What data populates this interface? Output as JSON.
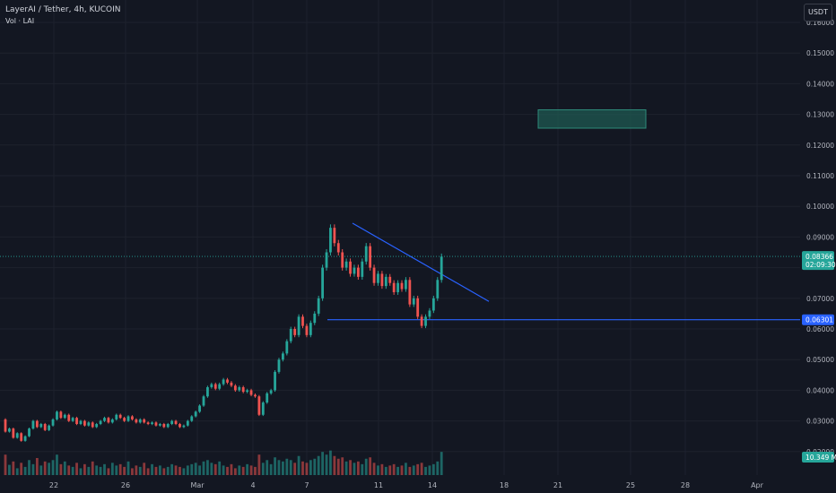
{
  "header": {
    "title": "LayerAI / Tether, 4h, KUCOIN",
    "subtitle": "Vol · LAI",
    "currency_button": "USDT"
  },
  "colors": {
    "background": "#131722",
    "grid": "#1e222d",
    "up": "#26a69a",
    "down": "#ef5350",
    "trendline": "#2962ff",
    "zone": "#1f5a52"
  },
  "chart_data": {
    "type": "candlestick",
    "x_ticks": [
      "22",
      "26",
      "Mar",
      "4",
      "7",
      "11",
      "14",
      "18",
      "21",
      "25",
      "28",
      "Apr"
    ],
    "y_ticks": [
      "0.16000",
      "0.15000",
      "0.14000",
      "0.13000",
      "0.12000",
      "0.11000",
      "0.10000",
      "0.09000",
      "0.07000",
      "0.06000",
      "0.05000",
      "0.04000",
      "0.03000",
      "0.02000"
    ],
    "ylim": [
      0.018,
      0.165
    ],
    "price_tag": {
      "value": "0.08366",
      "countdown": "02:09:30",
      "value_num": 0.08366
    },
    "support_tag": {
      "value": "0.06301",
      "value_num": 0.06301
    },
    "volume_tag": "10.349 M",
    "candles": [
      [
        0.0305,
        0.0265
      ],
      [
        0.0265,
        0.0275
      ],
      [
        0.0275,
        0.0245
      ],
      [
        0.0245,
        0.026
      ],
      [
        0.026,
        0.0235
      ],
      [
        0.0235,
        0.025
      ],
      [
        0.025,
        0.0275
      ],
      [
        0.0275,
        0.03
      ],
      [
        0.03,
        0.028
      ],
      [
        0.028,
        0.029
      ],
      [
        0.029,
        0.027
      ],
      [
        0.027,
        0.0285
      ],
      [
        0.0285,
        0.0305
      ],
      [
        0.0305,
        0.033
      ],
      [
        0.033,
        0.031
      ],
      [
        0.031,
        0.032
      ],
      [
        0.032,
        0.03
      ],
      [
        0.03,
        0.031
      ],
      [
        0.031,
        0.029
      ],
      [
        0.029,
        0.03
      ],
      [
        0.03,
        0.0285
      ],
      [
        0.0285,
        0.0295
      ],
      [
        0.0295,
        0.028
      ],
      [
        0.028,
        0.029
      ],
      [
        0.029,
        0.03
      ],
      [
        0.03,
        0.031
      ],
      [
        0.031,
        0.0295
      ],
      [
        0.0295,
        0.0305
      ],
      [
        0.0305,
        0.032
      ],
      [
        0.032,
        0.031
      ],
      [
        0.031,
        0.03
      ],
      [
        0.03,
        0.0315
      ],
      [
        0.0315,
        0.0305
      ],
      [
        0.0305,
        0.0295
      ],
      [
        0.0295,
        0.0305
      ],
      [
        0.0305,
        0.0295
      ],
      [
        0.0295,
        0.029
      ],
      [
        0.029,
        0.0295
      ],
      [
        0.0295,
        0.0285
      ],
      [
        0.0285,
        0.029
      ],
      [
        0.029,
        0.028
      ],
      [
        0.028,
        0.029
      ],
      [
        0.029,
        0.03
      ],
      [
        0.03,
        0.029
      ],
      [
        0.029,
        0.028
      ],
      [
        0.028,
        0.0285
      ],
      [
        0.0285,
        0.03
      ],
      [
        0.03,
        0.0315
      ],
      [
        0.0315,
        0.033
      ],
      [
        0.033,
        0.035
      ],
      [
        0.035,
        0.038
      ],
      [
        0.038,
        0.041
      ],
      [
        0.041,
        0.042
      ],
      [
        0.042,
        0.0405
      ],
      [
        0.0405,
        0.042
      ],
      [
        0.042,
        0.0435
      ],
      [
        0.0435,
        0.0425
      ],
      [
        0.0425,
        0.0415
      ],
      [
        0.0415,
        0.04
      ],
      [
        0.04,
        0.041
      ],
      [
        0.041,
        0.0395
      ],
      [
        0.0395,
        0.04
      ],
      [
        0.04,
        0.0385
      ],
      [
        0.0385,
        0.038
      ],
      [
        0.038,
        0.032
      ],
      [
        0.032,
        0.036
      ],
      [
        0.036,
        0.039
      ],
      [
        0.039,
        0.04
      ],
      [
        0.04,
        0.046
      ],
      [
        0.046,
        0.05
      ],
      [
        0.05,
        0.052
      ],
      [
        0.052,
        0.056
      ],
      [
        0.056,
        0.06
      ],
      [
        0.06,
        0.058
      ],
      [
        0.058,
        0.064
      ],
      [
        0.064,
        0.061
      ],
      [
        0.061,
        0.058
      ],
      [
        0.058,
        0.062
      ],
      [
        0.062,
        0.065
      ],
      [
        0.065,
        0.07
      ],
      [
        0.07,
        0.08
      ],
      [
        0.08,
        0.085
      ],
      [
        0.085,
        0.093
      ],
      [
        0.093,
        0.088
      ],
      [
        0.088,
        0.085
      ],
      [
        0.085,
        0.08
      ],
      [
        0.08,
        0.082
      ],
      [
        0.082,
        0.078
      ],
      [
        0.078,
        0.08
      ],
      [
        0.08,
        0.077
      ],
      [
        0.077,
        0.082
      ],
      [
        0.082,
        0.087
      ],
      [
        0.087,
        0.08
      ],
      [
        0.08,
        0.075
      ],
      [
        0.075,
        0.078
      ],
      [
        0.078,
        0.074
      ],
      [
        0.074,
        0.077
      ],
      [
        0.077,
        0.075
      ],
      [
        0.075,
        0.072
      ],
      [
        0.072,
        0.075
      ],
      [
        0.075,
        0.073
      ],
      [
        0.073,
        0.076
      ],
      [
        0.076,
        0.068
      ],
      [
        0.068,
        0.07
      ],
      [
        0.07,
        0.064
      ],
      [
        0.064,
        0.061
      ],
      [
        0.061,
        0.064
      ],
      [
        0.064,
        0.066
      ],
      [
        0.066,
        0.07
      ],
      [
        0.07,
        0.076
      ],
      [
        0.076,
        0.0836
      ]
    ],
    "volumes": [
      0.3,
      0.15,
      0.2,
      0.1,
      0.18,
      0.12,
      0.22,
      0.16,
      0.25,
      0.14,
      0.2,
      0.18,
      0.22,
      0.3,
      0.16,
      0.2,
      0.14,
      0.12,
      0.18,
      0.1,
      0.16,
      0.12,
      0.2,
      0.14,
      0.12,
      0.16,
      0.1,
      0.18,
      0.14,
      0.16,
      0.12,
      0.2,
      0.1,
      0.14,
      0.12,
      0.18,
      0.1,
      0.16,
      0.12,
      0.14,
      0.1,
      0.12,
      0.16,
      0.14,
      0.12,
      0.1,
      0.14,
      0.16,
      0.18,
      0.14,
      0.2,
      0.22,
      0.18,
      0.16,
      0.2,
      0.14,
      0.12,
      0.16,
      0.1,
      0.14,
      0.12,
      0.16,
      0.14,
      0.12,
      0.3,
      0.18,
      0.22,
      0.16,
      0.26,
      0.22,
      0.2,
      0.24,
      0.22,
      0.18,
      0.28,
      0.2,
      0.18,
      0.22,
      0.24,
      0.28,
      0.34,
      0.3,
      0.36,
      0.28,
      0.24,
      0.26,
      0.2,
      0.22,
      0.18,
      0.2,
      0.16,
      0.24,
      0.26,
      0.18,
      0.14,
      0.16,
      0.12,
      0.14,
      0.16,
      0.12,
      0.14,
      0.18,
      0.12,
      0.14,
      0.16,
      0.18,
      0.12,
      0.14,
      0.16,
      0.2,
      0.34
    ]
  }
}
